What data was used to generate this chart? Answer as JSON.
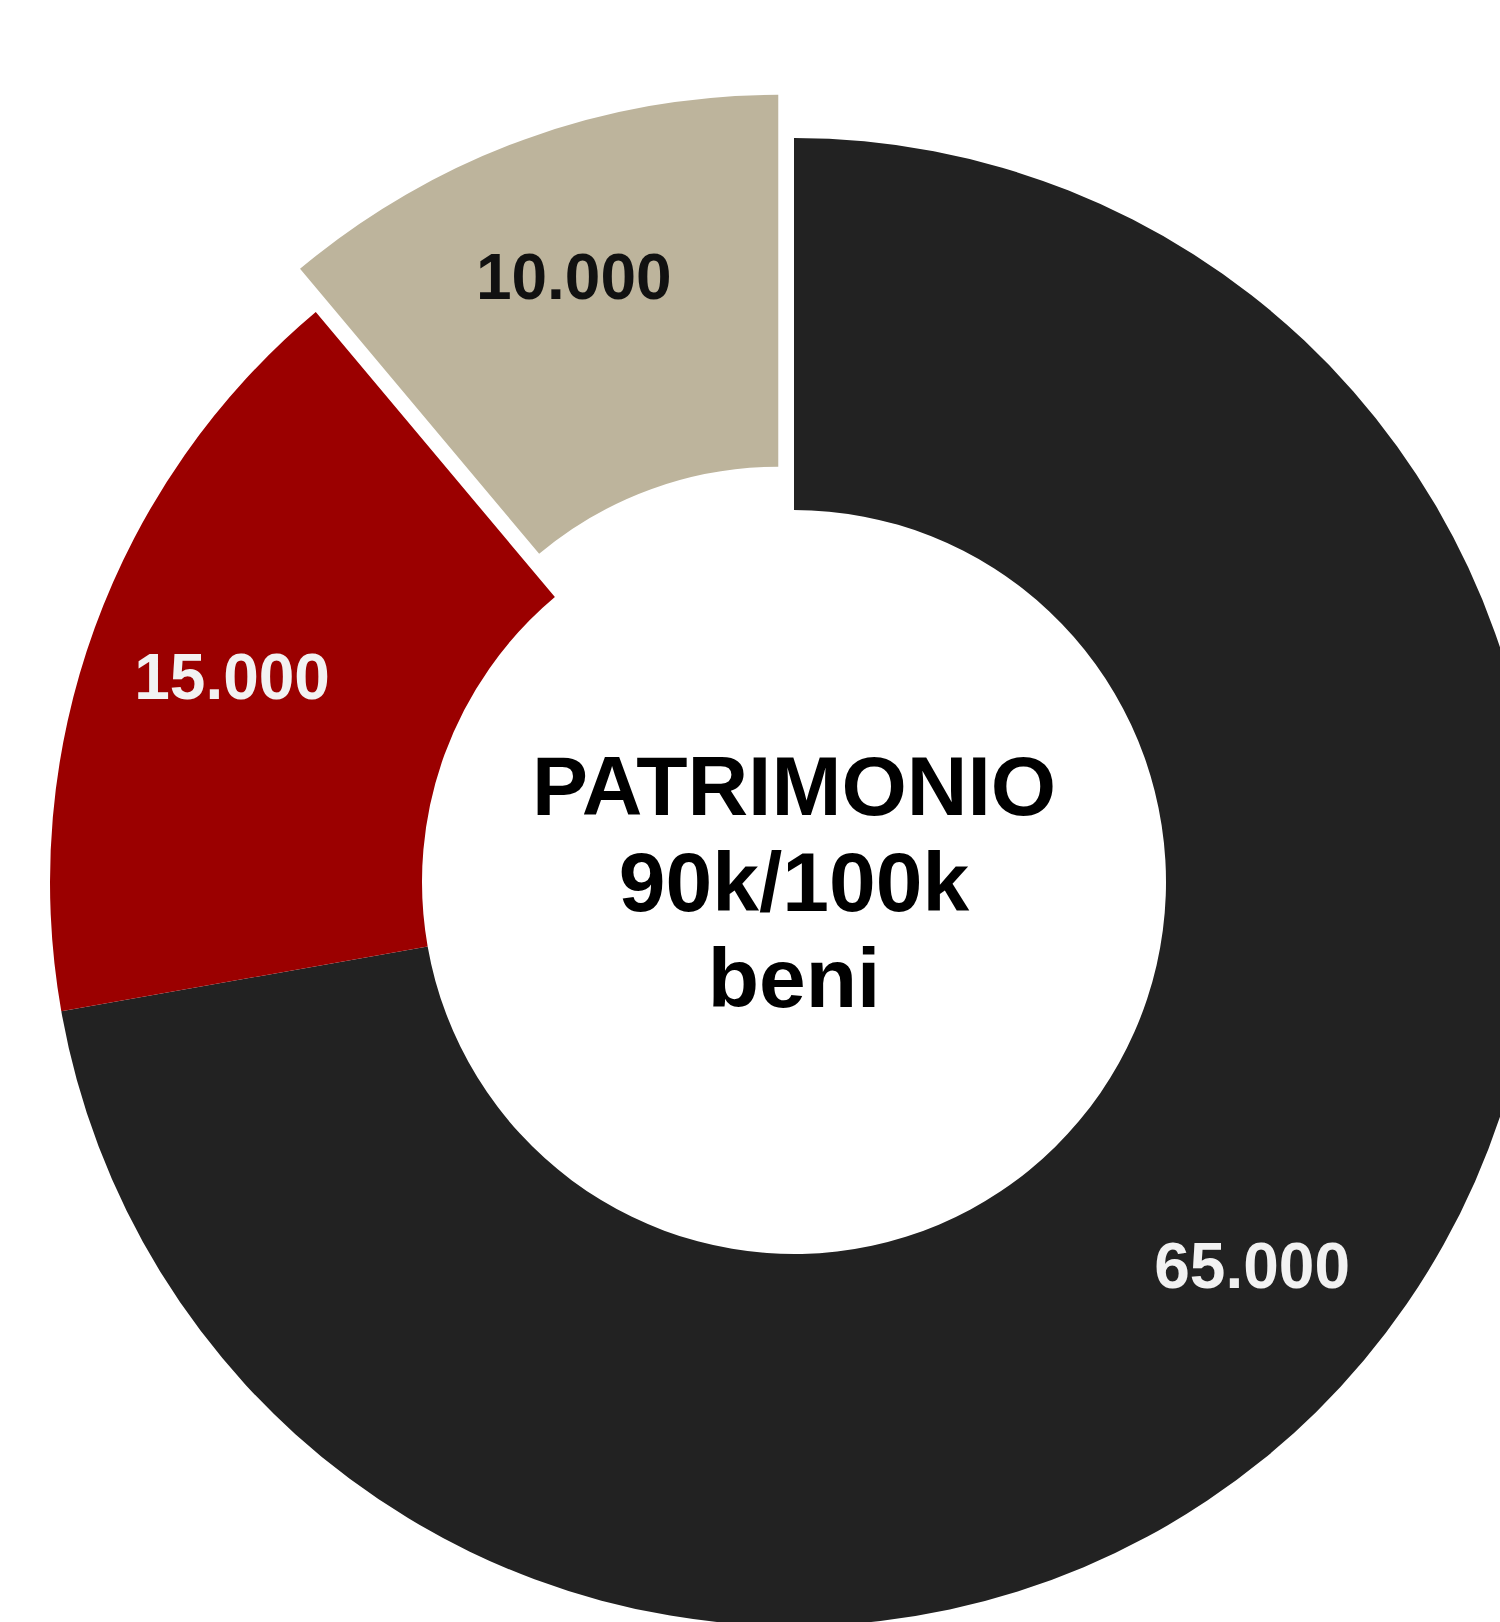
{
  "chart_data": {
    "type": "donut",
    "title": "PATRIMONIO",
    "annotations": [
      "90k/100k",
      "beni"
    ],
    "categories": [
      null,
      null,
      null
    ],
    "values": [
      65000,
      15000,
      10000
    ],
    "colors": [
      "#222222",
      "#9b0000",
      "#bdb49c"
    ],
    "value_labels": [
      "65.000",
      "15.000",
      "10.000"
    ]
  }
}
